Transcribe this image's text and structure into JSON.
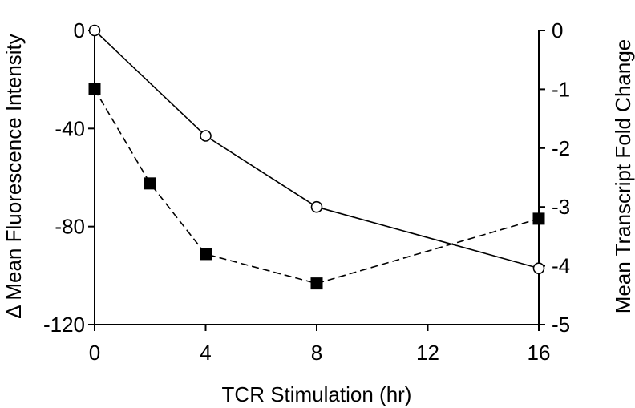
{
  "chart_data": {
    "type": "line",
    "xlabel": "TCR Stimulation (hr)",
    "ylabel_left": "Δ Mean Fluorescence Intensity",
    "ylabel_right": "Mean Transcript Fold Change",
    "xlim": [
      0,
      16
    ],
    "ylim_left": [
      -120,
      0
    ],
    "ylim_right": [
      -5,
      0
    ],
    "x_ticks": [
      0,
      4,
      8,
      12,
      16
    ],
    "y_ticks_left": [
      0,
      -40,
      -80,
      -120
    ],
    "y_ticks_right": [
      0,
      -1,
      -2,
      -3,
      -4,
      -5
    ],
    "x_tick_labels": [
      "0",
      "4",
      "8",
      "12",
      "16"
    ],
    "y_tick_labels_left": [
      "0",
      "-40",
      "-80",
      "-120"
    ],
    "y_tick_labels_right": [
      "0",
      "-1",
      "-2",
      "-3",
      "-4",
      "-5"
    ],
    "grid": false,
    "series": [
      {
        "axis": "left",
        "marker": "open-circle",
        "line_style": "solid",
        "color": "#000000",
        "x": [
          0,
          4,
          8,
          16
        ],
        "y": [
          0,
          -43,
          -72,
          -97
        ]
      },
      {
        "axis": "right",
        "marker": "filled-square",
        "line_style": "dashed",
        "color": "#000000",
        "x": [
          0,
          2,
          4,
          8,
          16
        ],
        "y": [
          -1,
          -2.6,
          -3.8,
          -4.3,
          -3.2
        ]
      }
    ]
  }
}
